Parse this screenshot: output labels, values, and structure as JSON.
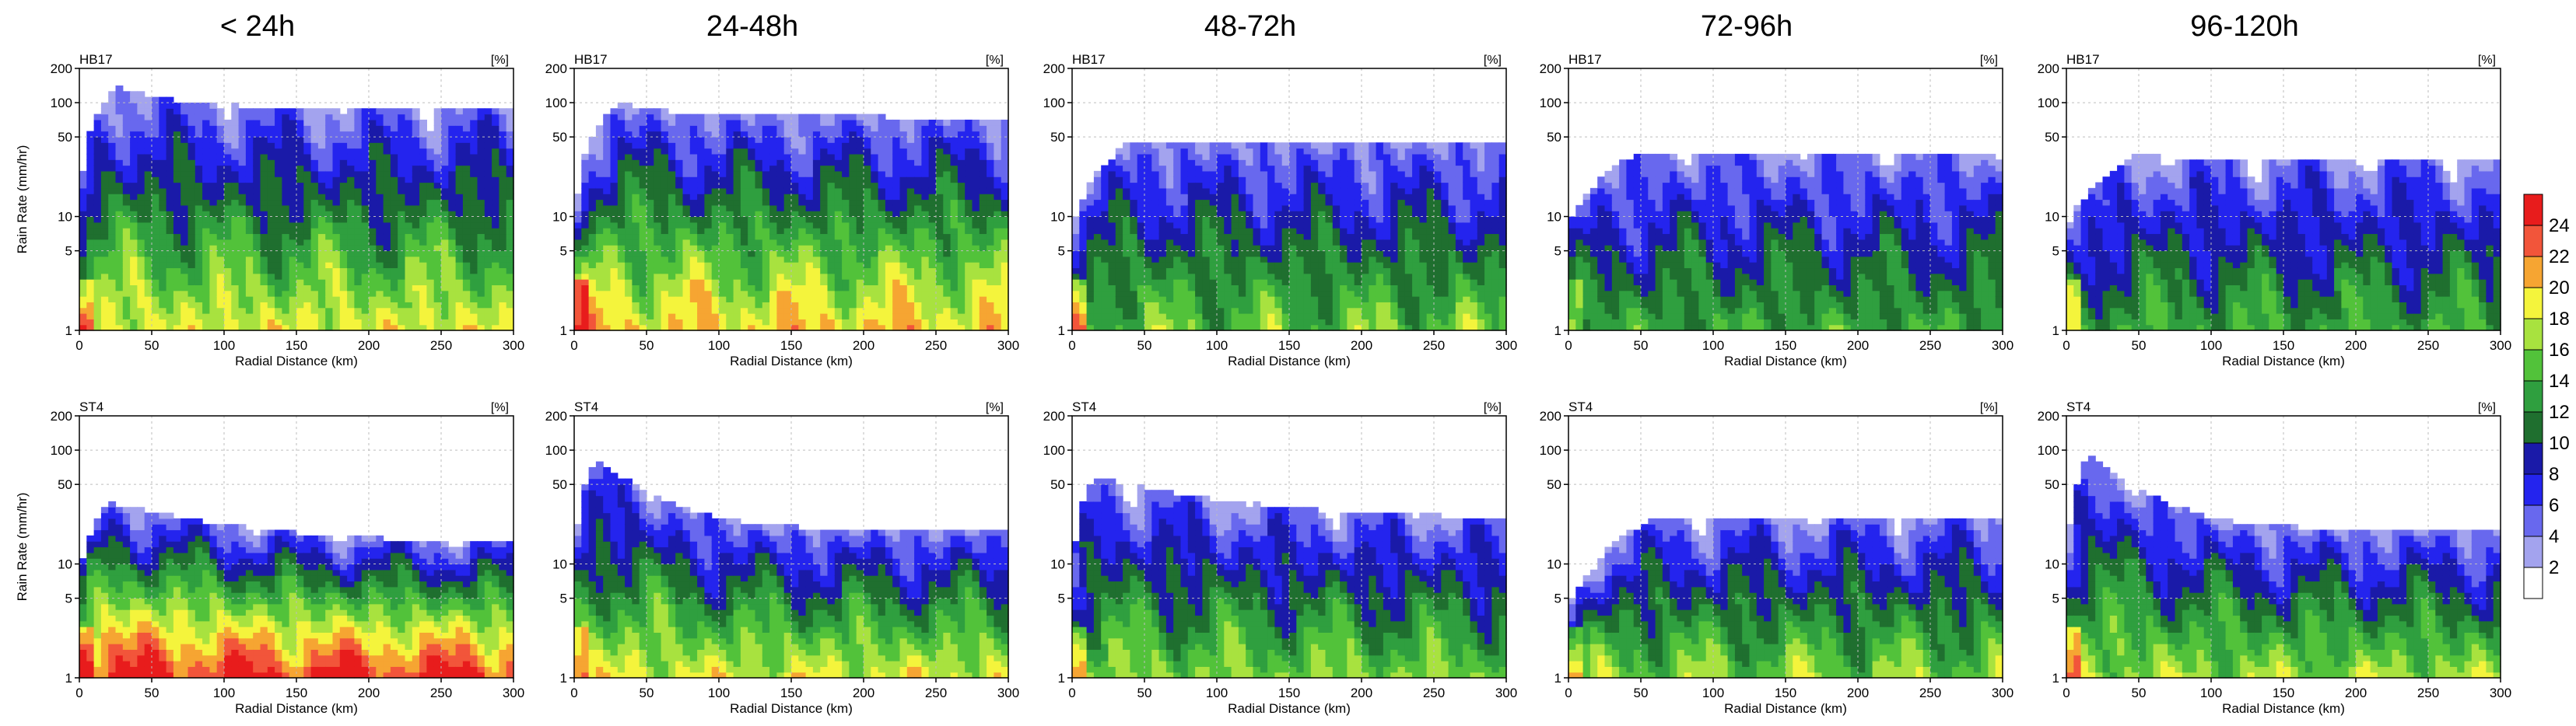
{
  "chart_data": {
    "type": "heatmap",
    "column_titles": [
      "< 24h",
      "24-48h",
      "48-72h",
      "72-96h",
      "96-120h"
    ],
    "row_labels": [
      "HB17",
      "ST4"
    ],
    "unit_label": "[%]",
    "xlabel": "Radial Distance (km)",
    "ylabel": "Rain Rate (mm/hr)",
    "x_ticks": [
      0,
      50,
      100,
      150,
      200,
      250,
      300
    ],
    "x_range": [
      0,
      300
    ],
    "y_ticks": [
      1,
      5,
      10,
      50,
      100,
      200
    ],
    "y_range": [
      1,
      200
    ],
    "y_scale": "log",
    "grid": true,
    "colorbar": {
      "placement": "right",
      "levels": [
        2,
        4,
        6,
        8,
        10,
        12,
        14,
        16,
        18,
        20,
        22,
        24
      ],
      "colors": [
        "#ffffff",
        "#a3a3ee",
        "#6868ee",
        "#2424ee",
        "#1a1aa8",
        "#1f6f2f",
        "#2f9f3f",
        "#52c23a",
        "#a8e23f",
        "#f4f43c",
        "#f6a532",
        "#f2553a",
        "#e81c1c"
      ]
    },
    "panels": [
      {
        "row": "HB17",
        "column": "< 24h",
        "profile": "peak",
        "peak_x": 25,
        "peak_top": 140,
        "far_top": 90,
        "core": 0.9
      },
      {
        "row": "HB17",
        "column": "24-48h",
        "profile": "peak",
        "peak_x": 30,
        "peak_top": 100,
        "far_top": 75,
        "core": 1.0
      },
      {
        "row": "HB17",
        "column": "48-72h",
        "profile": "plateau",
        "peak_x": 40,
        "peak_top": 45,
        "far_top": 45,
        "core": 0.7
      },
      {
        "row": "HB17",
        "column": "72-96h",
        "profile": "plateau",
        "peak_x": 45,
        "peak_top": 35,
        "far_top": 35,
        "core": 0.6
      },
      {
        "row": "HB17",
        "column": "96-120h",
        "profile": "plateau",
        "peak_x": 50,
        "peak_top": 35,
        "far_top": 30,
        "core": 0.6
      },
      {
        "row": "ST4",
        "column": "< 24h",
        "profile": "low",
        "peak_x": 20,
        "peak_top": 35,
        "far_top": 15,
        "core": 1.3
      },
      {
        "row": "ST4",
        "column": "24-48h",
        "profile": "peak",
        "peak_x": 15,
        "peak_top": 85,
        "far_top": 20,
        "core": 0.9
      },
      {
        "row": "ST4",
        "column": "48-72h",
        "profile": "plateau",
        "peak_x": 15,
        "peak_top": 60,
        "far_top": 25,
        "core": 0.75
      },
      {
        "row": "ST4",
        "column": "72-96h",
        "profile": "rise",
        "peak_x": 60,
        "peak_top": 25,
        "far_top": 25,
        "core": 0.75
      },
      {
        "row": "ST4",
        "column": "96-120h",
        "profile": "peak",
        "peak_x": 15,
        "peak_top": 90,
        "far_top": 20,
        "core": 0.8
      }
    ]
  }
}
